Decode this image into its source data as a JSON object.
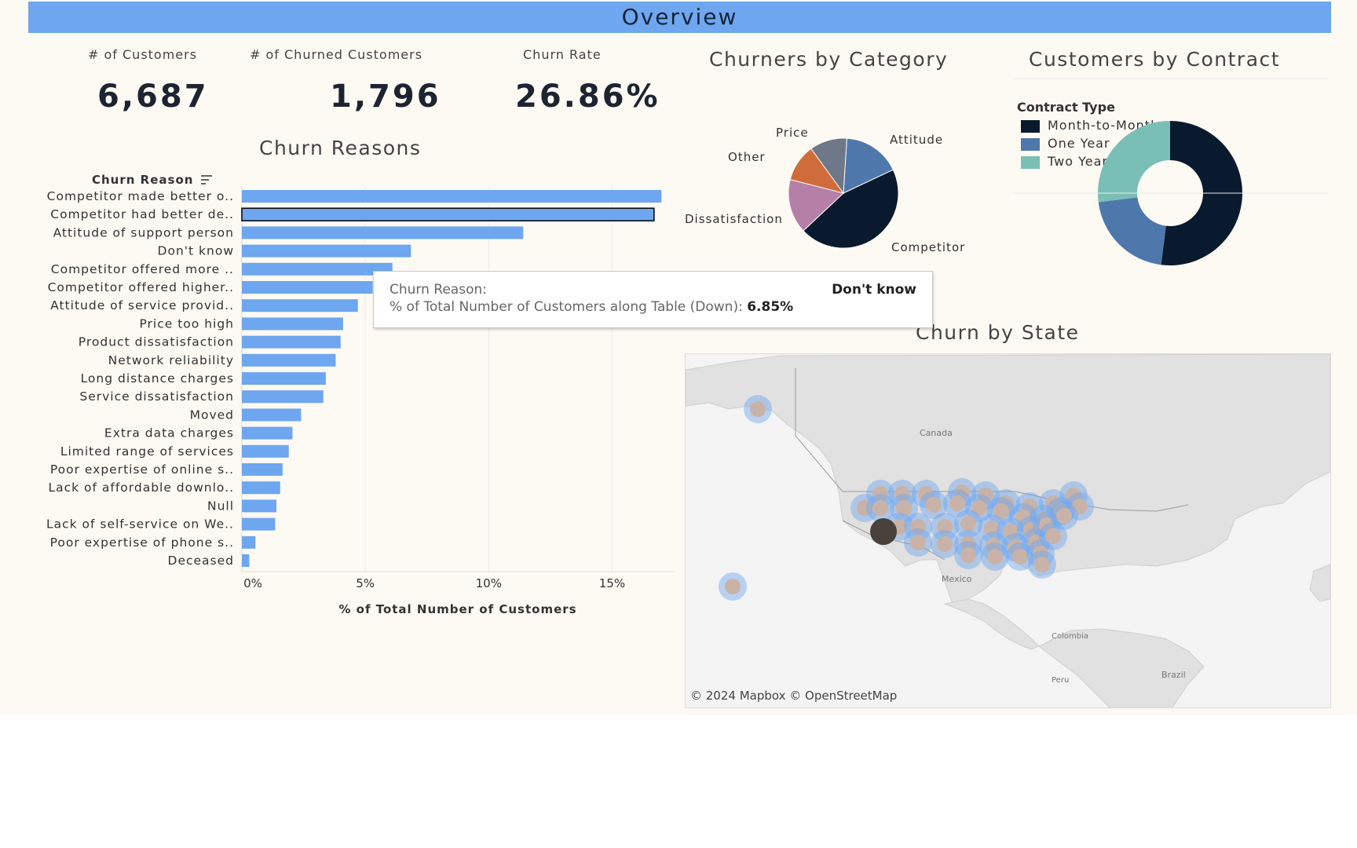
{
  "header": {
    "title": "Overview"
  },
  "kpis": {
    "customers": {
      "label": "# of Customers",
      "value": "6,687"
    },
    "churned": {
      "label": "# of Churned Customers",
      "value": "1,796"
    },
    "rate": {
      "label": "Churn Rate",
      "value": "26.86%"
    }
  },
  "sections": {
    "churn_reasons": "Churn Reasons",
    "by_category": "Churners by Category",
    "by_contract": "Customers by Contract",
    "by_state": "Churn by State"
  },
  "chart_data": [
    {
      "type": "bar",
      "title": "Churn Reasons",
      "header": "Churn Reason",
      "xlabel": "% of Total Number of Customers",
      "xlim": [
        0,
        17.5
      ],
      "ticks": [
        "0%",
        "5%",
        "10%",
        "15%"
      ],
      "tick_values": [
        0,
        5,
        10,
        15
      ],
      "selected": "Competitor had better de..",
      "categories": [
        "Competitor made better o..",
        "Competitor had better de..",
        "Attitude of support person",
        "Don't know",
        "Competitor offered more ..",
        "Competitor offered higher..",
        "Attitude of service provid..",
        "Price too high",
        "Product dissatisfaction",
        "Network reliability",
        "Long distance charges",
        "Service dissatisfaction",
        "Moved",
        "Extra data charges",
        "Limited range of services",
        "Poor expertise of online s..",
        "Lack of affordable downlo..",
        "Null",
        "Lack of self-service on We..",
        "Poor expertise of phone s..",
        "Deceased"
      ],
      "values": [
        17.0,
        16.7,
        11.4,
        6.85,
        6.1,
        5.3,
        4.7,
        4.1,
        4.0,
        3.8,
        3.4,
        3.3,
        2.4,
        2.05,
        1.9,
        1.65,
        1.55,
        1.4,
        1.35,
        0.55,
        0.3
      ],
      "color": "#6ea6ef"
    },
    {
      "type": "pie",
      "title": "Churners by Category",
      "slices": [
        {
          "label": "Competitor",
          "value": 45.0,
          "color": "#0a1a2e"
        },
        {
          "label": "Dissatisfaction",
          "value": 16.0,
          "color": "#b67fa8"
        },
        {
          "label": "Other",
          "value": 11.0,
          "color": "#d06c3b"
        },
        {
          "label": "Price",
          "value": 11.0,
          "color": "#6e7888"
        },
        {
          "label": "Attitude",
          "value": 17.0,
          "color": "#4e78ab"
        }
      ]
    },
    {
      "type": "pie",
      "title": "Customers by Contract",
      "legend_title": "Contract Type",
      "slices": [
        {
          "label": "Month-to-Month",
          "value": 52.0,
          "color": "#0a1a2e"
        },
        {
          "label": "One Year",
          "value": 21.0,
          "color": "#4e78ab"
        },
        {
          "label": "Two Year",
          "value": 27.0,
          "color": "#7abfb5"
        }
      ]
    }
  ],
  "tooltip": {
    "row1_label": "Churn Reason:",
    "row1_value": "Don't know",
    "row2_label": "% of Total Number of Customers along Table (Down):",
    "row2_value": "6.85%"
  },
  "map": {
    "labels": {
      "canada": "Canada",
      "mexico": "Mexico",
      "colombia": "Colombia",
      "peru": "Peru",
      "brazil": "Brazil"
    },
    "credit": "© 2024 Mapbox  © OpenStreetMap"
  }
}
